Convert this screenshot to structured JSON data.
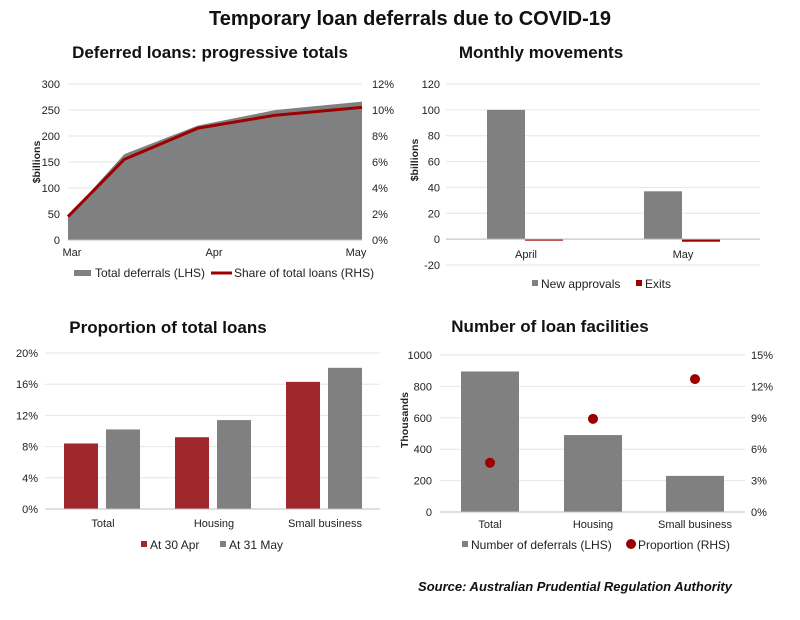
{
  "title": "Temporary loan deferrals due to COVID-19",
  "source": "Source: Australian Prudential Regulation Authority",
  "colors": {
    "grey": "#808080",
    "red": "#a0282d",
    "darkred": "#9c0000"
  },
  "chart_data": [
    {
      "id": "progressive",
      "type": "area",
      "title": "Deferred loans: progressive totals",
      "ylabel": "$billions",
      "ylim": [
        0,
        300
      ],
      "y_ticks": [
        "0",
        "50",
        "100",
        "150",
        "200",
        "250",
        "300"
      ],
      "y2lim": [
        0,
        12
      ],
      "y2_ticks": [
        "0%",
        "2%",
        "4%",
        "6%",
        "8%",
        "10%",
        "12%"
      ],
      "x_labels": [
        "Mar",
        "Apr",
        "May"
      ],
      "x": [
        0,
        0.65,
        1.5,
        2.4,
        3.4
      ],
      "series": [
        {
          "name": "Total deferrals (LHS)",
          "type": "area",
          "axis": "left",
          "values": [
            45,
            165,
            220,
            250,
            266
          ]
        },
        {
          "name": "Share of total loans (RHS)",
          "type": "line",
          "axis": "right",
          "values": [
            1.8,
            6.2,
            8.6,
            9.6,
            10.2
          ]
        }
      ],
      "legend": "bottom"
    },
    {
      "id": "monthly",
      "type": "bar",
      "title": "Monthly movements",
      "ylabel": "$billions",
      "ylim": [
        -20,
        120
      ],
      "y_ticks": [
        "-20",
        "0",
        "20",
        "40",
        "60",
        "80",
        "100",
        "120"
      ],
      "categories": [
        "April",
        "May"
      ],
      "series": [
        {
          "name": "New approvals",
          "values": [
            100,
            37
          ]
        },
        {
          "name": "Exits",
          "values": [
            -1,
            -2
          ]
        }
      ],
      "legend": "bottom"
    },
    {
      "id": "proportion",
      "type": "bar",
      "title": "Proportion of total loans",
      "ylabel": "",
      "ylim": [
        0,
        20
      ],
      "y_ticks": [
        "0%",
        "4%",
        "8%",
        "12%",
        "16%",
        "20%"
      ],
      "categories": [
        "Total",
        "Housing",
        "Small business"
      ],
      "series": [
        {
          "name": "At 30 Apr",
          "values": [
            8.4,
            9.2,
            16.3
          ]
        },
        {
          "name": "At 31 May",
          "values": [
            10.2,
            11.4,
            18.1
          ]
        }
      ],
      "legend": "bottom"
    },
    {
      "id": "facilities",
      "type": "bar",
      "title": "Number of loan facilities",
      "ylabel": "Thousands",
      "ylim": [
        0,
        1000
      ],
      "y_ticks": [
        "0",
        "200",
        "400",
        "600",
        "800",
        "1000"
      ],
      "y2lim": [
        0,
        15
      ],
      "y2_ticks": [
        "0%",
        "3%",
        "6%",
        "9%",
        "12%",
        "15%"
      ],
      "categories": [
        "Total",
        "Housing",
        "Small business"
      ],
      "series": [
        {
          "name": "Number of deferrals (LHS)",
          "type": "bar",
          "axis": "left",
          "values": [
            895,
            490,
            230
          ]
        },
        {
          "name": "Proportion (RHS)",
          "type": "scatter",
          "axis": "right",
          "values": [
            4.7,
            8.9,
            12.7
          ]
        }
      ],
      "legend": "bottom"
    }
  ]
}
